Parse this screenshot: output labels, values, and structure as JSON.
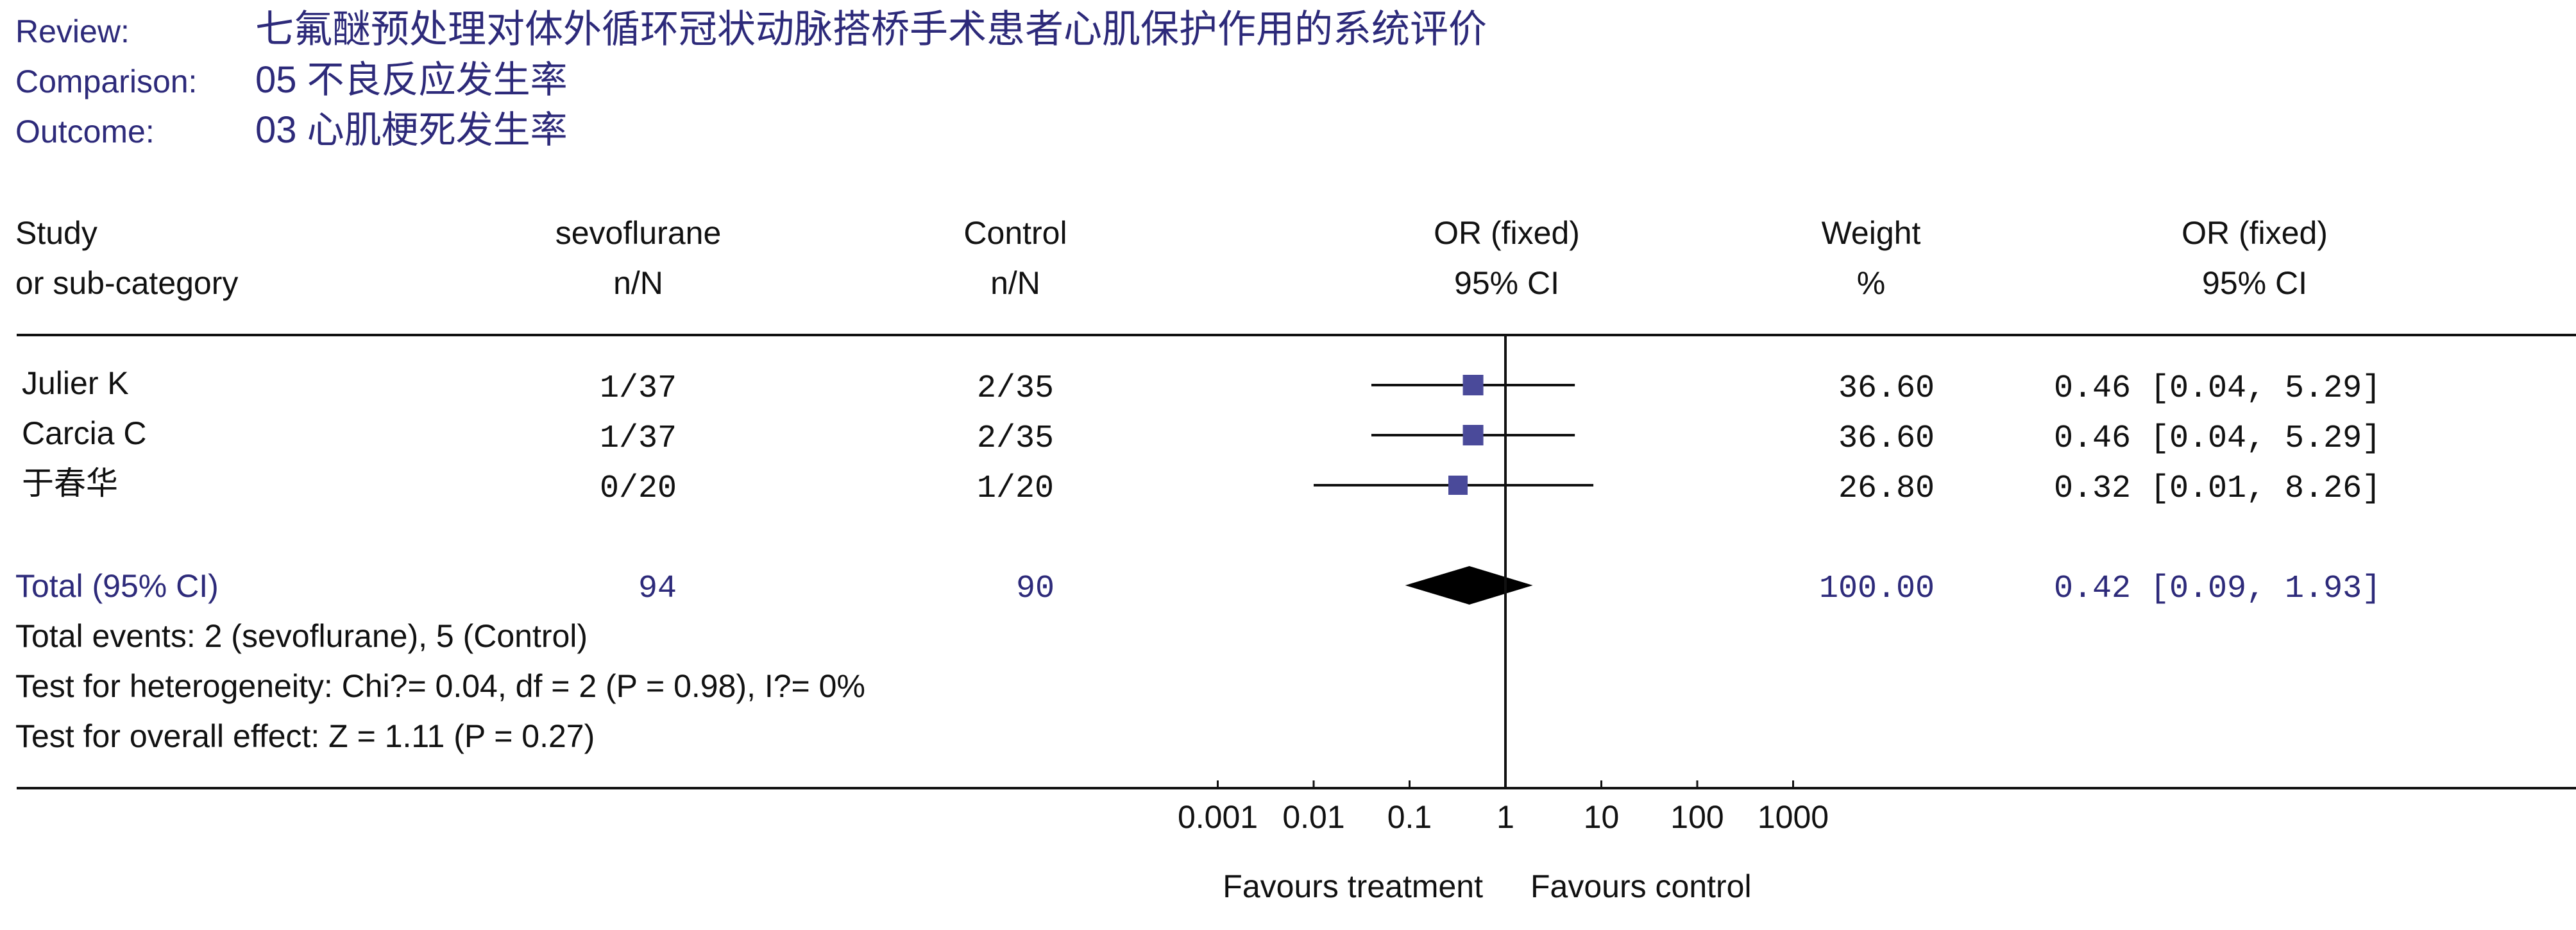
{
  "header": {
    "review_label": "Review:",
    "review_value": "七氟醚预处理对体外循环冠状动脉搭桥手术患者心肌保护作用的系统评价",
    "comparison_label": "Comparison:",
    "comparison_value": "05 不良反应发生率",
    "outcome_label": "Outcome:",
    "outcome_value": "03 心肌梗死发生率"
  },
  "columns": {
    "study_line1": "Study",
    "study_line2": "or sub-category",
    "sevo_line1": "sevoflurane",
    "sevo_line2": "n/N",
    "control_line1": "Control",
    "control_line2": "n/N",
    "plot_line1": "OR (fixed)",
    "plot_line2": "95% CI",
    "weight_line1": "Weight",
    "weight_line2": "%",
    "or_line1": "OR (fixed)",
    "or_line2": "95% CI"
  },
  "footer": {
    "total_events": "Total events: 2 (sevoflurane), 5 (Control)",
    "heterogeneity": "Test for heterogeneity: Chi?= 0.04, df = 2 (P = 0.98), I?= 0%",
    "overall_effect": "Test for overall effect: Z = 1.11 (P = 0.27)",
    "favours_treatment": "Favours treatment",
    "favours_control": "Favours control"
  },
  "colors": {
    "text_blue": "#2d2a7a",
    "marker": "#4a4a9a",
    "line": "#111111",
    "diamond": "#000000"
  },
  "chart_data": {
    "type": "forest",
    "scale": "log",
    "xlim": [
      0.001,
      1000
    ],
    "ticks": [
      0.001,
      0.01,
      0.1,
      1,
      10,
      100,
      1000
    ],
    "tick_labels": [
      "0.001",
      "0.01",
      "0.1",
      "1",
      "10",
      "100",
      "1000"
    ],
    "reference_line": 1,
    "studies": [
      {
        "name": "Julier K",
        "sevo": "1/37",
        "control": "2/35",
        "weight": 36.6,
        "weight_label": "36.60",
        "or": 0.46,
        "lower": 0.04,
        "upper": 5.29,
        "ci_label": "0.46 [0.04, 5.29]"
      },
      {
        "name": "Carcia C",
        "sevo": "1/37",
        "control": "2/35",
        "weight": 36.6,
        "weight_label": "36.60",
        "or": 0.46,
        "lower": 0.04,
        "upper": 5.29,
        "ci_label": "0.46 [0.04, 5.29]"
      },
      {
        "name": "于春华",
        "sevo": "0/20",
        "control": "1/20",
        "weight": 26.8,
        "weight_label": "26.80",
        "or": 0.32,
        "lower": 0.01,
        "upper": 8.26,
        "ci_label": "0.32 [0.01, 8.26]"
      }
    ],
    "total": {
      "label": "Total (95% CI)",
      "sevo": "94",
      "control": "90",
      "weight_label": "100.00",
      "or": 0.42,
      "lower": 0.09,
      "upper": 1.93,
      "ci_label": "0.42 [0.09, 1.93]"
    }
  }
}
